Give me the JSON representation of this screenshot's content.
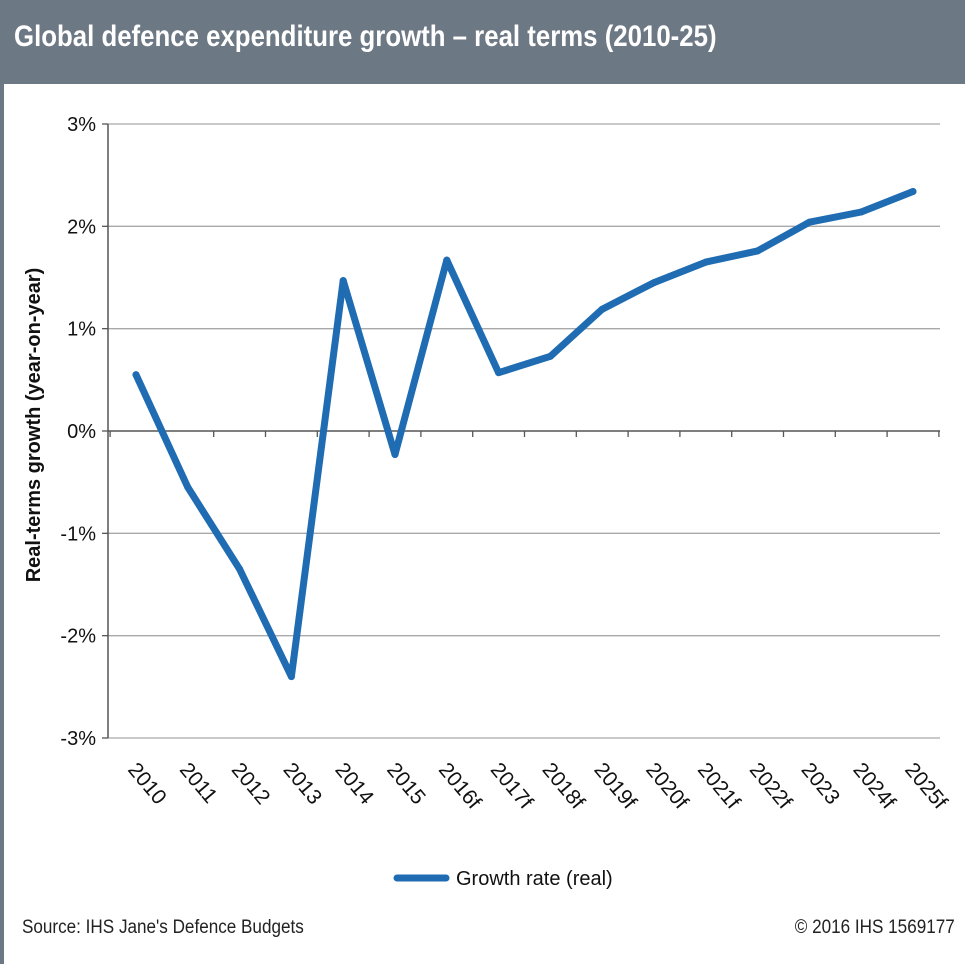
{
  "title": "Global defence expenditure growth – real terms (2010-25)",
  "footer": {
    "source": "Source: IHS Jane's Defence Budgets",
    "credit": "© 2016 IHS   1569177"
  },
  "colors": {
    "title_bar": "#6d7885",
    "series_line": "#1f6cb3",
    "gridline": "#a9a9a9"
  },
  "chart_data": {
    "type": "line",
    "title": "Global defence expenditure growth – real terms (2010-25)",
    "xlabel": "",
    "ylabel": "Real-terms growth (year-on-year)",
    "categories": [
      "2010",
      "2011",
      "2012",
      "2013",
      "2014",
      "2015",
      "2016f",
      "2017f",
      "2018f",
      "2019f",
      "2020f",
      "2021f",
      "2022f",
      "2023",
      "2024f",
      "2025f"
    ],
    "series": [
      {
        "name": "Growth rate (real)",
        "color": "#1f6cb3",
        "values": [
          0.55,
          -0.55,
          -1.35,
          -2.4,
          1.47,
          -0.23,
          1.67,
          0.57,
          0.73,
          1.19,
          1.45,
          1.65,
          1.76,
          2.04,
          2.14,
          2.34
        ]
      }
    ],
    "yticks": [
      "3%",
      "2%",
      "1%",
      "0%",
      "-1%",
      "-2%",
      "-3%"
    ],
    "ytick_values": [
      3,
      2,
      1,
      0,
      -1,
      -2,
      -3
    ],
    "ylim": [
      -3,
      3
    ],
    "grid": true,
    "legend_position": "bottom-center"
  }
}
